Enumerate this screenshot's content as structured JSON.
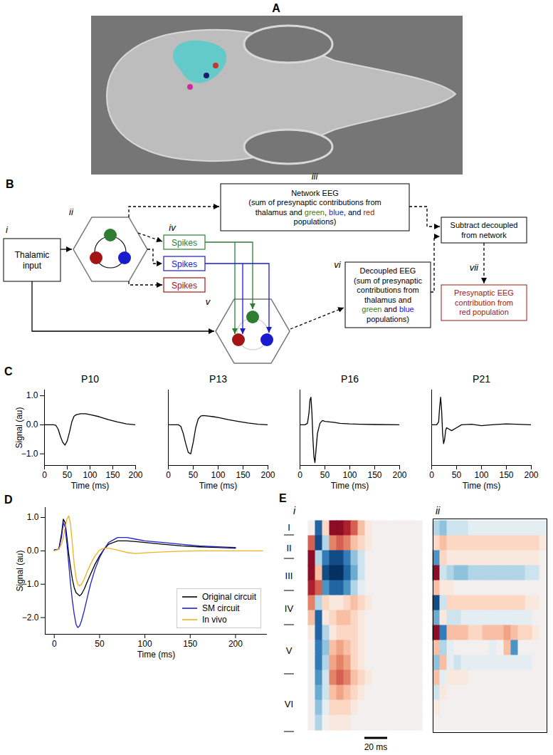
{
  "diagram": {
    "panel_a": {
      "label": "A"
    },
    "panel_b": {
      "label": "B",
      "thalamic_input": {
        "tag": "i",
        "lines": [
          "Thalamic",
          "input"
        ]
      },
      "network_circuit": {
        "tag": "ii"
      },
      "network_eeg": {
        "tag": "iii",
        "lines": [
          "Network EEG",
          "(sum of presynaptic contributions from",
          [
            {
              "text": "thalamus and "
            },
            {
              "text": "green",
              "color": "#2e7d32"
            },
            {
              "text": ", "
            },
            {
              "text": "blue",
              "color": "#1a1acf"
            },
            {
              "text": ", and "
            },
            {
              "text": "red",
              "color": "#a31515"
            }
          ],
          "populations)"
        ]
      },
      "spikes": {
        "tag": "iv",
        "boxes": [
          {
            "text": "Spikes",
            "color": "#2e7d32"
          },
          {
            "text": "Spikes",
            "color": "#1a1acf"
          },
          {
            "text": "Spikes",
            "color": "#a31515"
          }
        ]
      },
      "decoupled_circuit": {
        "tag": "v"
      },
      "decoupled_eeg": {
        "tag": "vi",
        "lines": [
          "Decoupled EEG",
          "(sum of presynaptic",
          "contributions from",
          "thalamus and",
          [
            {
              "text": "green",
              "color": "#2e7d32"
            },
            {
              "text": " and "
            },
            {
              "text": "blue",
              "color": "#1a1acf"
            }
          ],
          "populations)"
        ]
      },
      "subtract": {
        "lines": [
          "Subtract decoupled",
          "from network"
        ]
      },
      "result": {
        "tag": "vii",
        "lines": [
          "Presynaptic EEG",
          "contribution from",
          "red population"
        ],
        "color": "#a31515"
      }
    }
  },
  "chart_data": [
    {
      "type": "line",
      "panel_label": "C",
      "title": "P10",
      "xlabel": "Time (ms)",
      "ylabel": "Signal (au)",
      "x": [
        0,
        10,
        20,
        25,
        30,
        35,
        40,
        45,
        50,
        55,
        60,
        65,
        70,
        80,
        90,
        100,
        120,
        140,
        160,
        180,
        200
      ],
      "values": [
        0,
        0,
        0,
        -0.02,
        -0.15,
        -0.4,
        -0.6,
        -0.7,
        -0.55,
        -0.25,
        0.1,
        0.3,
        0.35,
        0.38,
        0.38,
        0.35,
        0.28,
        0.18,
        0.1,
        0.03,
        0
      ],
      "color": "#000000",
      "xlim": [
        0,
        200
      ],
      "ylim": [
        -1.4,
        1.2
      ],
      "xticks": [
        0,
        50,
        100,
        150,
        200
      ],
      "yticks": [
        -1,
        0,
        1
      ]
    },
    {
      "type": "line",
      "title": "P13",
      "xlabel": "Time (ms)",
      "x": [
        0,
        10,
        20,
        25,
        30,
        35,
        40,
        45,
        50,
        55,
        60,
        65,
        70,
        80,
        90,
        100,
        120,
        140,
        160,
        180,
        200
      ],
      "values": [
        0,
        0,
        0,
        -0.05,
        -0.3,
        -0.65,
        -0.95,
        -1.0,
        -0.6,
        -0.1,
        0.2,
        0.3,
        0.32,
        0.3,
        0.28,
        0.25,
        0.18,
        0.12,
        0.06,
        0.02,
        0
      ],
      "color": "#000000",
      "xlim": [
        0,
        200
      ],
      "ylim": [
        -1.4,
        1.2
      ],
      "xticks": [
        0,
        50,
        100,
        150,
        200
      ],
      "yticks": [
        -1,
        0,
        1
      ],
      "tick_labels": "x"
    },
    {
      "type": "line",
      "title": "P16",
      "xlabel": "Time (ms)",
      "x": [
        0,
        10,
        15,
        18,
        20,
        22,
        24,
        26,
        28,
        30,
        32,
        35,
        40,
        45,
        50,
        60,
        70,
        80,
        100,
        120,
        150,
        200
      ],
      "values": [
        0,
        0,
        0.05,
        0.4,
        0.85,
        0.95,
        0.4,
        -0.5,
        -1.1,
        -1.3,
        -0.9,
        -0.3,
        0.05,
        0.15,
        0.12,
        0.1,
        0.08,
        0.05,
        0.03,
        0.02,
        0.01,
        0
      ],
      "color": "#000000",
      "xlim": [
        0,
        200
      ],
      "ylim": [
        -1.4,
        1.2
      ],
      "xticks": [
        0,
        50,
        100,
        150,
        200
      ],
      "yticks": [
        -1,
        0,
        1
      ],
      "tick_labels": "x"
    },
    {
      "type": "line",
      "title": "P21",
      "xlabel": "Time (ms)",
      "x": [
        0,
        10,
        14,
        16,
        18,
        20,
        22,
        24,
        26,
        28,
        30,
        35,
        40,
        50,
        60,
        80,
        100,
        120,
        150,
        200
      ],
      "values": [
        0,
        0,
        0.1,
        0.6,
        0.95,
        0.5,
        -0.3,
        -0.65,
        -0.5,
        -0.2,
        -0.1,
        -0.15,
        -0.2,
        -0.1,
        0,
        0.02,
        -0.03,
        0,
        0.03,
        0
      ],
      "color": "#000000",
      "xlim": [
        0,
        200
      ],
      "ylim": [
        -1.4,
        1.2
      ],
      "xticks": [
        0,
        50,
        100,
        150,
        200
      ],
      "yticks": [
        -1,
        0,
        1
      ],
      "tick_labels": "x"
    },
    {
      "type": "line",
      "panel_label": "D",
      "xlabel": "Time (ms)",
      "ylabel": "Signal (au)",
      "x": [
        0,
        5,
        8,
        10,
        12,
        14,
        16,
        18,
        20,
        22,
        24,
        26,
        28,
        30,
        33,
        36,
        40,
        45,
        50,
        55,
        60,
        70,
        80,
        90,
        100,
        120,
        140,
        160,
        180,
        200,
        215,
        230
      ],
      "series": [
        {
          "name": "Original circuit",
          "color": "#000000",
          "values": [
            0.02,
            0.05,
            0.5,
            0.95,
            0.85,
            0.4,
            -0.1,
            -0.5,
            -0.85,
            -1.1,
            -1.25,
            -1.3,
            -1.35,
            -1.3,
            -1.15,
            -0.95,
            -0.7,
            -0.4,
            -0.15,
            0.05,
            0.2,
            0.3,
            0.3,
            0.28,
            0.25,
            0.2,
            0.15,
            0.12,
            0.1,
            0.08,
            null,
            null
          ]
        },
        {
          "name": "SM circuit",
          "color": "#1f1fcc",
          "values": [
            0.03,
            0.05,
            0.4,
            0.85,
            0.7,
            0.2,
            -0.4,
            -1.0,
            -1.5,
            -1.9,
            -2.2,
            -2.3,
            -2.25,
            -2.1,
            -1.8,
            -1.45,
            -1.0,
            -0.55,
            -0.2,
            0.05,
            0.25,
            0.4,
            0.4,
            0.35,
            0.3,
            0.25,
            0.2,
            0.15,
            0.12,
            0.1,
            null,
            null
          ]
        },
        {
          "name": "In vivo",
          "color": "#f2b01e",
          "values": [
            0,
            0.05,
            0.2,
            0.4,
            0.7,
            0.95,
            1.05,
            0.8,
            0.2,
            -0.4,
            -0.8,
            -1.0,
            -1.05,
            -1.0,
            -0.85,
            -0.65,
            -0.4,
            -0.15,
            0.02,
            0.08,
            0.08,
            0.02,
            -0.05,
            -0.08,
            -0.06,
            -0.03,
            -0.01,
            0,
            0,
            0,
            0,
            0
          ]
        }
      ],
      "xlim": [
        -10,
        235
      ],
      "ylim": [
        -2.5,
        1.3
      ],
      "xticks": [
        0,
        50,
        100,
        150,
        200
      ],
      "yticks": [
        -2,
        -1,
        0,
        1
      ],
      "legend": "lower right"
    },
    {
      "type": "heatmap",
      "panel_label": "E",
      "subpanel_label": "i",
      "tick_labels": false,
      "layers": [
        "I",
        "II",
        "III",
        "IV",
        "V",
        "VI"
      ],
      "value_range": [
        -1,
        1
      ],
      "cells": [
        [
          0,
          -0.8,
          0.2,
          0.9,
          0.9,
          0.8,
          0.6,
          0.3,
          0.1,
          0,
          0,
          0,
          0,
          0,
          0,
          0
        ],
        [
          0.6,
          -0.9,
          -0.3,
          0.5,
          0.6,
          0.5,
          0.3,
          0.2,
          0.1,
          0,
          0,
          0,
          0,
          0,
          0,
          0
        ],
        [
          0.9,
          -0.3,
          -0.7,
          -0.9,
          -0.9,
          -0.7,
          -0.4,
          -0.2,
          0,
          0,
          0,
          0,
          0,
          0,
          0,
          0
        ],
        [
          0.9,
          0.3,
          -0.9,
          -1,
          -1,
          -0.8,
          -0.5,
          -0.2,
          0,
          0,
          0,
          0,
          0,
          0,
          0,
          0
        ],
        [
          0.8,
          0.6,
          -0.6,
          -0.8,
          -0.8,
          -0.6,
          -0.3,
          -0.1,
          0,
          0,
          0,
          0,
          0,
          0,
          0,
          0
        ],
        [
          0.5,
          -0.3,
          0.2,
          0.1,
          0.1,
          0.2,
          0.3,
          0.2,
          0.1,
          0,
          0,
          0,
          0,
          0,
          0,
          0
        ],
        [
          0.3,
          -0.8,
          0.1,
          0.2,
          0.3,
          0.3,
          0.2,
          0.1,
          0,
          0,
          0,
          0,
          0,
          0,
          0,
          0
        ],
        [
          0.1,
          -0.8,
          -0.3,
          0.1,
          0.2,
          0.2,
          0.2,
          0.1,
          0,
          0,
          0,
          0,
          0,
          0,
          0,
          0
        ],
        [
          0,
          -0.7,
          -0.4,
          0.3,
          0.4,
          0.3,
          0.2,
          0.1,
          0,
          0,
          0,
          0,
          0,
          0,
          0,
          0
        ],
        [
          0,
          -0.7,
          -0.3,
          0.4,
          0.5,
          0.4,
          0.2,
          0.1,
          0,
          0,
          0,
          0,
          0,
          0,
          0,
          0
        ],
        [
          0,
          -0.6,
          -0.2,
          0.5,
          0.6,
          0.5,
          0.3,
          0.2,
          0.1,
          0,
          0,
          0,
          0,
          0,
          0,
          0
        ],
        [
          0,
          -0.5,
          -0.2,
          0.3,
          0.4,
          0.3,
          0.2,
          0.1,
          0,
          0,
          0,
          0,
          0,
          0,
          0,
          0
        ],
        [
          0,
          -0.4,
          -0.1,
          0.2,
          0.2,
          0.2,
          0.1,
          0,
          0,
          0,
          0,
          0,
          0,
          0,
          0,
          0
        ],
        [
          0,
          -0.3,
          0,
          0.1,
          0.1,
          0.1,
          0,
          0,
          0,
          0,
          0,
          0,
          0,
          0,
          0,
          0
        ]
      ]
    },
    {
      "type": "heatmap",
      "subpanel_label": "ii",
      "tick_labels": false,
      "scale_bar": "20 ms",
      "value_range": [
        -1,
        1
      ],
      "cells": [
        [
          -0.3,
          -0.4,
          -0.2,
          -0.2,
          -0.2,
          -0.1,
          -0.1,
          -0.1,
          -0.1,
          -0.1,
          -0.1,
          -0.1,
          -0.1,
          -0.1,
          -0.1,
          -0.1
        ],
        [
          0.2,
          0.3,
          0.2,
          0.2,
          0.2,
          0.2,
          0.2,
          0.2,
          0.2,
          0.2,
          0.2,
          0.2,
          0.2,
          0.2,
          0.2,
          0.1
        ],
        [
          -0.6,
          0.2,
          0.1,
          0.1,
          0.1,
          0.1,
          0.1,
          0.1,
          0.1,
          0.1,
          0.1,
          0.1,
          0.1,
          0.1,
          0.1,
          0
        ],
        [
          0.9,
          -0.2,
          -0.3,
          -0.4,
          -0.4,
          -0.3,
          -0.3,
          -0.3,
          -0.3,
          -0.3,
          -0.3,
          -0.3,
          -0.3,
          -0.2,
          -0.2,
          0
        ],
        [
          0.3,
          0.1,
          0.1,
          0,
          0,
          0,
          0,
          0,
          0,
          0,
          0,
          0,
          0,
          0,
          0,
          0
        ],
        [
          -0.9,
          -0.2,
          0.2,
          0.2,
          0.2,
          0.2,
          0.2,
          0.2,
          0.2,
          0.2,
          0.2,
          0.2,
          0.2,
          0.1,
          0.1,
          0
        ],
        [
          -0.5,
          0.1,
          -0.2,
          -0.2,
          -0.1,
          -0.1,
          -0.1,
          -0.1,
          -0.1,
          -0.1,
          -0.1,
          -0.1,
          -0.1,
          -0.1,
          0,
          0
        ],
        [
          0.9,
          -0.7,
          0.3,
          0.3,
          0.3,
          0.2,
          0.2,
          0.3,
          0.3,
          0.3,
          0.4,
          0.3,
          0.2,
          0.2,
          0.1,
          0
        ],
        [
          0.3,
          -0.3,
          -0.1,
          0,
          0,
          0,
          0,
          0,
          -0.1,
          0,
          0.3,
          -0.6,
          0,
          0,
          0,
          0
        ],
        [
          -0.4,
          0.3,
          -0.1,
          -0.2,
          -0.1,
          -0.1,
          -0.1,
          -0.1,
          -0.1,
          -0.1,
          -0.1,
          -0.1,
          -0.1,
          -0.1,
          0,
          0
        ],
        [
          0.3,
          -0.1,
          0.1,
          0.1,
          0.1,
          0,
          0,
          0,
          0,
          0,
          0,
          0,
          0,
          0,
          0,
          0
        ],
        [
          -0.2,
          0.1,
          0,
          0,
          0,
          0,
          0,
          0,
          0,
          0,
          0,
          0,
          0,
          0,
          0,
          0
        ],
        [
          0.1,
          0,
          0,
          0,
          0,
          0,
          0,
          0,
          0,
          0,
          0,
          0,
          0,
          0,
          0,
          0
        ],
        [
          0,
          0,
          0,
          0,
          0,
          0,
          0,
          0,
          0,
          0,
          0,
          0,
          0,
          0,
          0,
          0
        ]
      ]
    }
  ]
}
